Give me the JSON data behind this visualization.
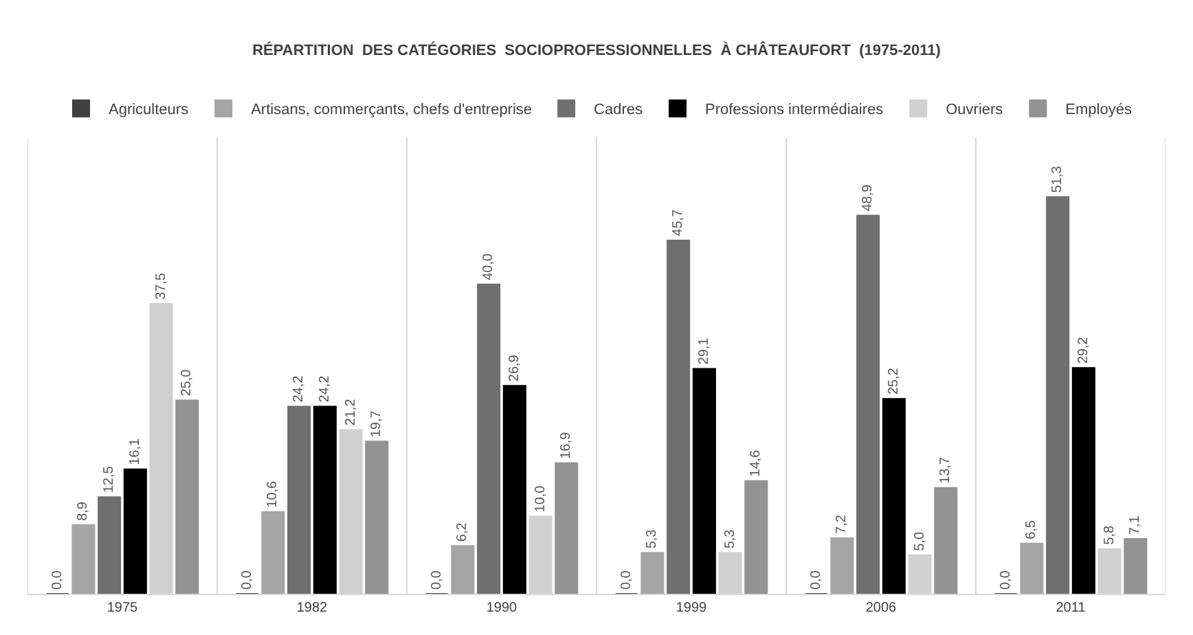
{
  "chart_data": {
    "type": "bar",
    "title": "RÉPARTITION  DES CATÉGORIES  SOCIOPROFESSIONNELLES  À CHÂTEAUFORT  (1975-2011)",
    "categories": [
      "1975",
      "1982",
      "1990",
      "1999",
      "2006",
      "2011"
    ],
    "series": [
      {
        "name": "Agriculteurs",
        "color": "#404040",
        "values": [
          0,
          0,
          0,
          0,
          0,
          0
        ],
        "value_labels": [
          "0,0",
          "0,0",
          "0,0",
          "0,0",
          "0,0",
          "0,0"
        ]
      },
      {
        "name": "Artisans, commerçants, chefs d'entreprise",
        "color": "#a5a5a5",
        "values": [
          8.9,
          10.6,
          6.2,
          5.3,
          7.2,
          6.5
        ],
        "value_labels": [
          "8,9",
          "10,6",
          "6,2",
          "5,3",
          "7,2",
          "6,5"
        ]
      },
      {
        "name": "Cadres",
        "color": "#6f6f6f",
        "values": [
          12.5,
          24.2,
          40.0,
          45.7,
          48.9,
          51.3
        ],
        "value_labels": [
          "12,5",
          "24,2",
          "40,0",
          "45,7",
          "48,9",
          "51,3"
        ]
      },
      {
        "name": "Professions intermédiaires",
        "color": "#000000",
        "values": [
          16.1,
          24.2,
          26.9,
          29.1,
          25.2,
          29.2
        ],
        "value_labels": [
          "16,1",
          "24,2",
          "26,9",
          "29,1",
          "25,2",
          "29,2"
        ]
      },
      {
        "name": "Ouvriers",
        "color": "#d0d0d0",
        "values": [
          37.5,
          21.2,
          10.0,
          5.3,
          5.0,
          5.8
        ],
        "value_labels": [
          "37,5",
          "21,2",
          "10,0",
          "5,3",
          "5,0",
          "5,8"
        ]
      },
      {
        "name": "Employés",
        "color": "#939393",
        "values": [
          25.0,
          19.7,
          16.9,
          14.6,
          13.7,
          7.1
        ],
        "value_labels": [
          "25,0",
          "19,7",
          "16,9",
          "14,6",
          "13,7",
          "7,1"
        ]
      }
    ],
    "grid": "x",
    "legend": "top",
    "tick_labels": "x"
  }
}
